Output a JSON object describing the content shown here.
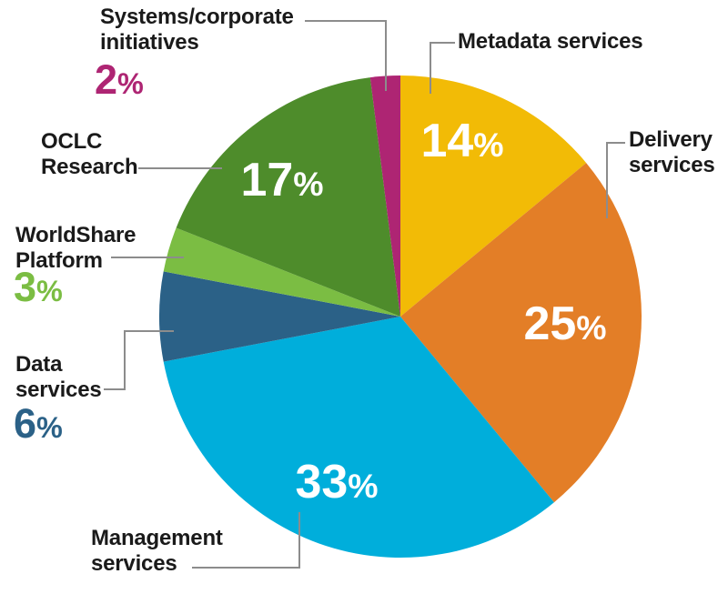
{
  "chart_data": {
    "type": "pie",
    "total": 100,
    "start_angle": "12 o'clock",
    "direction": "clockwise",
    "grid": false,
    "legend": "callout labels around pie",
    "background": "#FFFFFF",
    "text_color": "#1A1A1A",
    "inside_value_color": "#FFFFFF",
    "callout_line_color": "#8C8C8C",
    "pct_sign": "%",
    "segments": [
      {
        "label": "Metadata services",
        "value": 14,
        "color": "#F2BB06",
        "value_placement": "inside"
      },
      {
        "label": "Delivery services",
        "value": 25,
        "color": "#E37E27",
        "value_placement": "inside"
      },
      {
        "label": "Management services",
        "value": 33,
        "color": "#00AEDB",
        "value_placement": "inside"
      },
      {
        "label": "Data services",
        "value": 6,
        "color": "#2B6187",
        "value_placement": "outside"
      },
      {
        "label": "WorldShare Platform",
        "value": 3,
        "color": "#7BBD43",
        "value_placement": "outside"
      },
      {
        "label": "OCLC Research",
        "value": 17,
        "color": "#4E8C2B",
        "value_placement": "inside"
      },
      {
        "label": "Systems/corporate initiatives",
        "value": 2,
        "color": "#AE2573",
        "value_placement": "outside"
      }
    ]
  }
}
